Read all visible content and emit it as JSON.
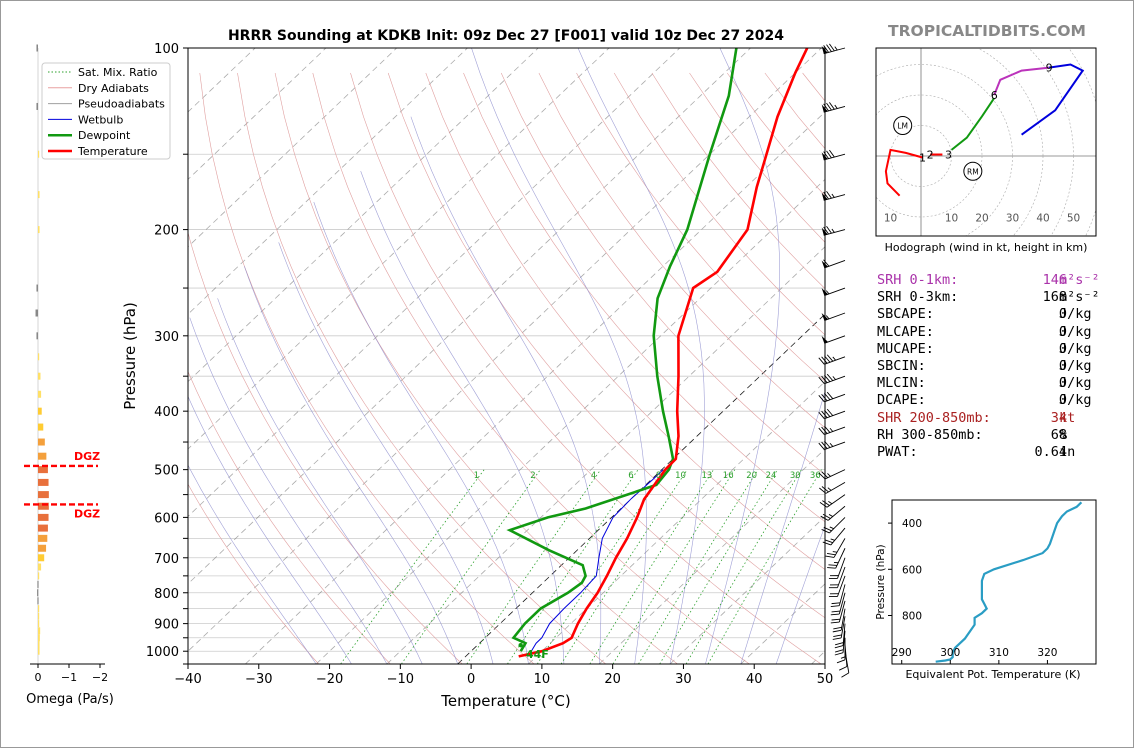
{
  "site": {
    "brand": "TROPICALTIDBITS.COM",
    "brand_color": "#888888"
  },
  "chart_data": [
    {
      "type": "line",
      "name": "skew-t",
      "title": "HRRR Sounding at KDKB Init: 09z Dec 27 [F001] valid 10z Dec 27 2024",
      "xlabel": "Temperature (°C)",
      "ylabel": "Pressure (hPa)",
      "xlim": [
        -40,
        50
      ],
      "ylim": [
        1050,
        100
      ],
      "yscale": "log",
      "x_ticks": [
        "−40",
        "−30",
        "−20",
        "−10",
        "0",
        "10",
        "20",
        "30",
        "40",
        "50"
      ],
      "y_ticks": [
        "100",
        "200",
        "300",
        "400",
        "500",
        "600",
        "700",
        "800",
        "900",
        "1000"
      ],
      "legend": {
        "placement": "top-left",
        "entries": [
          {
            "label": "Sat. Mix. Ratio",
            "color": "#2ca02c",
            "style": "dotted"
          },
          {
            "label": "Dry Adiabats",
            "color": "#e8a0a0",
            "style": "solid"
          },
          {
            "label": "Pseudoadiabats",
            "color": "#a0a0a0",
            "style": "solid"
          },
          {
            "label": "Wetbulb",
            "color": "#0000dd",
            "style": "solid"
          },
          {
            "label": "Dewpoint",
            "color": "#119911",
            "style": "solid"
          },
          {
            "label": "Temperature",
            "color": "#ff0000",
            "style": "solid"
          }
        ]
      },
      "mixing_ratio_labels": [
        "1",
        "2",
        "4",
        "6",
        "8",
        "10",
        "13",
        "16",
        "20",
        "24",
        "30",
        "36"
      ],
      "surface_label": "44F",
      "series": [
        {
          "name": "Temperature",
          "color": "#ff0000",
          "points": [
            [
              1020,
              7.5
            ],
            [
              1000,
              10
            ],
            [
              970,
              11.8
            ],
            [
              950,
              12.2
            ],
            [
              900,
              11
            ],
            [
              850,
              10
            ],
            [
              800,
              9.2
            ],
            [
              750,
              8
            ],
            [
              700,
              6.6
            ],
            [
              650,
              5.3
            ],
            [
              600,
              3.6
            ],
            [
              560,
              1.9
            ],
            [
              500,
              0.5
            ],
            [
              480,
              0.4
            ],
            [
              440,
              -2.6
            ],
            [
              400,
              -6.5
            ],
            [
              350,
              -11.5
            ],
            [
              300,
              -17.5
            ],
            [
              250,
              -22.5
            ],
            [
              235,
              -21.5
            ],
            [
              200,
              -23.5
            ],
            [
              170,
              -28.5
            ],
            [
              150,
              -32
            ],
            [
              130,
              -36
            ],
            [
              110,
              -40
            ],
            [
              100,
              -42
            ]
          ]
        },
        {
          "name": "Dewpoint",
          "color": "#119911",
          "points": [
            [
              1000,
              7
            ],
            [
              970,
              6.5
            ],
            [
              950,
              4
            ],
            [
              900,
              3.5
            ],
            [
              850,
              3.5
            ],
            [
              800,
              5
            ],
            [
              770,
              5.5
            ],
            [
              750,
              5
            ],
            [
              720,
              3
            ],
            [
              680,
              -4
            ],
            [
              630,
              -12.5
            ],
            [
              600,
              -9
            ],
            [
              580,
              -5
            ],
            [
              530,
              1.5
            ],
            [
              500,
              1
            ],
            [
              480,
              0
            ],
            [
              440,
              -4
            ],
            [
              400,
              -8.5
            ],
            [
              350,
              -14.5
            ],
            [
              300,
              -21
            ],
            [
              260,
              -26
            ],
            [
              230,
              -29
            ],
            [
              200,
              -32
            ],
            [
              150,
              -40
            ],
            [
              120,
              -46
            ],
            [
              100,
              -52
            ]
          ]
        },
        {
          "name": "Wetbulb",
          "color": "#0000dd",
          "points": [
            [
              1000,
              8.5
            ],
            [
              970,
              8
            ],
            [
              950,
              8
            ],
            [
              900,
              7
            ],
            [
              850,
              6.8
            ],
            [
              800,
              6.8
            ],
            [
              750,
              6.5
            ],
            [
              700,
              4.2
            ],
            [
              650,
              1.8
            ],
            [
              600,
              0.2
            ],
            [
              560,
              0
            ],
            [
              520,
              0.2
            ],
            [
              500,
              0.2
            ]
          ]
        }
      ]
    },
    {
      "type": "bar",
      "name": "omega",
      "xlabel": "Omega (Pa/s)",
      "x_ticks": [
        "0",
        "−1",
        "−2"
      ],
      "dgz_label": "DGZ",
      "dgz_bounds_hPa": [
        493,
        571
      ],
      "levels_hPa": [
        100,
        125,
        150,
        175,
        200,
        250,
        275,
        300,
        325,
        350,
        375,
        400,
        425,
        450,
        475,
        500,
        525,
        550,
        575,
        600,
        625,
        650,
        675,
        700,
        725,
        750,
        775,
        800,
        825,
        850,
        875,
        900,
        925,
        950,
        975,
        1000
      ],
      "values": [
        0.05,
        0.05,
        -0.03,
        -0.05,
        -0.05,
        0.05,
        0.08,
        0.05,
        -0.02,
        -0.08,
        -0.1,
        -0.12,
        -0.17,
        -0.22,
        -0.27,
        -0.32,
        -0.34,
        -0.35,
        -0.35,
        -0.34,
        -0.32,
        -0.3,
        -0.26,
        -0.2,
        -0.1,
        -0.03,
        0.02,
        0.03,
        0.02,
        -0.01,
        -0.02,
        -0.04,
        -0.07,
        -0.06,
        -0.05,
        -0.05
      ],
      "colors": {
        "weak": "#ffe066",
        "moderate": "#ffcc33",
        "strong": "#f4a03c",
        "strongest": "#e8703c",
        "positive": "#888888"
      }
    },
    {
      "type": "line",
      "name": "hodograph",
      "xlabel": "Hodograph (wind in kt, height in km)",
      "ring_labels": [
        "10",
        "10",
        "20",
        "30",
        "40",
        "50"
      ],
      "height_labels": [
        {
          "label": "1",
          "u": 0.5,
          "v": -0.5
        },
        {
          "label": "2",
          "u": 3,
          "v": 0.5
        },
        {
          "label": "3",
          "u": 9,
          "v": 0.5
        },
        {
          "label": "6",
          "u": 24,
          "v": 20
        },
        {
          "label": "9",
          "u": 42,
          "v": 29
        }
      ],
      "markers": [
        {
          "label": "LM",
          "u": -6,
          "v": 10
        },
        {
          "label": "RM",
          "u": 17,
          "v": -5
        }
      ],
      "series": [
        {
          "color": "#ff0000",
          "points": [
            [
              -7,
              -13
            ],
            [
              -11,
              -9
            ],
            [
              -11.5,
              -5
            ],
            [
              -10,
              2
            ],
            [
              -5,
              1
            ],
            [
              0.5,
              -0.5
            ]
          ]
        },
        {
          "color": "#ff0000",
          "points": [
            [
              3,
              0.5
            ],
            [
              7,
              0.5
            ]
          ]
        },
        {
          "color": "#119911",
          "points": [
            [
              10,
              2
            ],
            [
              15,
              6
            ],
            [
              20,
              13
            ],
            [
              24,
              19
            ]
          ]
        },
        {
          "color": "#bb33bb",
          "points": [
            [
              24,
              20
            ],
            [
              26,
              25
            ],
            [
              33,
              28
            ],
            [
              42,
              29
            ]
          ]
        },
        {
          "color": "#0000dd",
          "points": [
            [
              42,
              29
            ],
            [
              49,
              30
            ],
            [
              53,
              28
            ],
            [
              44,
              15
            ],
            [
              33,
              7
            ]
          ]
        }
      ]
    },
    {
      "type": "line",
      "name": "theta-e",
      "xlabel": "Equivalent Pot. Temperature (K)",
      "ylabel": "Pressure (hPa)",
      "xlim": [
        288,
        330
      ],
      "ylim": [
        1010,
        300
      ],
      "x_ticks": [
        "290",
        "300",
        "310",
        "320"
      ],
      "y_ticks": [
        "400",
        "600",
        "800"
      ],
      "series": [
        {
          "color": "#2a9dc4",
          "points": [
            [
              1000,
              297
            ],
            [
              995,
              299
            ],
            [
              990,
              300
            ],
            [
              980,
              300.5
            ],
            [
              960,
              300.5
            ],
            [
              940,
              301
            ],
            [
              920,
              302
            ],
            [
              900,
              303
            ],
            [
              870,
              304
            ],
            [
              840,
              305
            ],
            [
              810,
              305
            ],
            [
              790,
              306.5
            ],
            [
              770,
              307.5
            ],
            [
              750,
              307
            ],
            [
              730,
              306.5
            ],
            [
              700,
              306.5
            ],
            [
              670,
              306.5
            ],
            [
              650,
              306.5
            ],
            [
              620,
              307
            ],
            [
              600,
              309
            ],
            [
              560,
              315
            ],
            [
              530,
              319
            ],
            [
              510,
              320
            ],
            [
              490,
              320.5
            ],
            [
              460,
              321
            ],
            [
              430,
              321.5
            ],
            [
              400,
              322
            ],
            [
              370,
              323
            ],
            [
              350,
              324
            ],
            [
              330,
              326
            ],
            [
              310,
              327
            ]
          ]
        }
      ]
    }
  ],
  "params": [
    {
      "key": "SRH 0-1km:",
      "value": "146",
      "unit": "m²s⁻²",
      "color": "#aa33aa"
    },
    {
      "key": "SRH 0-3km:",
      "value": "168",
      "unit": "m²s⁻²",
      "color": "#000000"
    },
    {
      "key": "SBCAPE:",
      "value": "0",
      "unit": "J/kg",
      "color": "#000000"
    },
    {
      "key": "MLCAPE:",
      "value": "0",
      "unit": "J/kg",
      "color": "#000000"
    },
    {
      "key": "MUCAPE:",
      "value": "0",
      "unit": "J/kg",
      "color": "#000000"
    },
    {
      "key": "SBCIN:",
      "value": "0",
      "unit": "J/kg",
      "color": "#000000"
    },
    {
      "key": "MLCIN:",
      "value": "0",
      "unit": "J/kg",
      "color": "#000000"
    },
    {
      "key": "DCAPE:",
      "value": "0",
      "unit": "J/kg",
      "color": "#000000"
    },
    {
      "key": "SHR 200-850mb:",
      "value": "34",
      "unit": "kt",
      "color": "#aa2222"
    },
    {
      "key": "RH 300-850mb:",
      "value": "68",
      "unit": "%",
      "color": "#000000"
    },
    {
      "key": "PWAT:",
      "value": "0.64",
      "unit": "in",
      "color": "#000000"
    }
  ],
  "wind_barbs": {
    "levels_hPa": [
      100,
      125,
      150,
      175,
      200,
      225,
      250,
      275,
      300,
      325,
      350,
      375,
      400,
      425,
      450,
      500,
      525,
      550,
      575,
      600,
      625,
      650,
      675,
      700,
      725,
      750,
      775,
      800,
      825,
      850,
      875,
      900,
      925,
      950,
      975,
      1000
    ],
    "speed_kt": [
      85,
      85,
      80,
      75,
      75,
      60,
      55,
      55,
      50,
      45,
      45,
      40,
      40,
      35,
      35,
      25,
      25,
      25,
      25,
      25,
      25,
      25,
      25,
      20,
      20,
      20,
      20,
      20,
      20,
      20,
      20,
      20,
      20,
      15,
      10,
      10
    ],
    "dir_deg": [
      255,
      255,
      255,
      255,
      255,
      250,
      250,
      250,
      250,
      250,
      250,
      250,
      250,
      250,
      250,
      245,
      240,
      235,
      230,
      225,
      220,
      210,
      205,
      200,
      200,
      200,
      195,
      195,
      195,
      190,
      190,
      185,
      185,
      180,
      175,
      170
    ]
  }
}
